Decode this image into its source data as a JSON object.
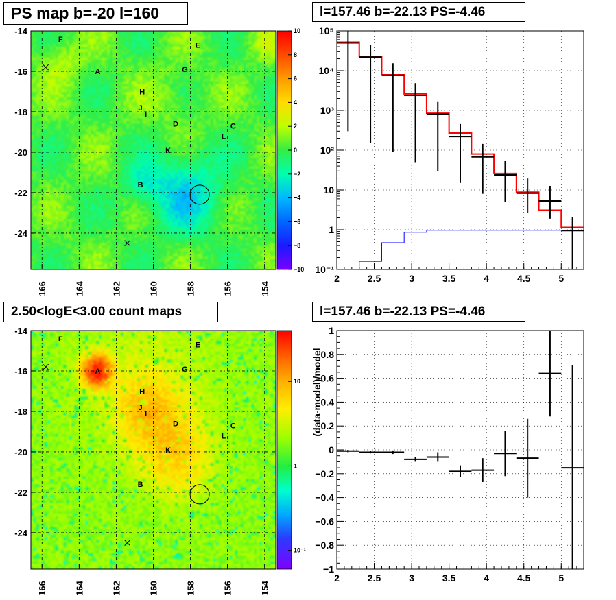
{
  "chart_data": [
    {
      "type": "heatmap",
      "title": "PS map b=-20 l=160",
      "xlabel": "",
      "ylabel": "",
      "x_ticks": [
        166,
        164,
        162,
        160,
        158,
        156,
        154
      ],
      "y_ticks": [
        -14,
        -16,
        -18,
        -20,
        -22,
        -24
      ],
      "xlim": [
        166.6,
        153.4
      ],
      "ylim": [
        -25.8,
        -14
      ],
      "grid": true,
      "colorbar": {
        "scale": "linear",
        "range": [
          -10,
          10
        ],
        "ticks": [
          "10",
          "8",
          "6",
          "4",
          "2",
          "0",
          "−2",
          "−4",
          "−6",
          "−8",
          "−10"
        ]
      },
      "labels": [
        {
          "text": "F",
          "l": 165.0,
          "b": -14.4
        },
        {
          "text": "E",
          "l": 157.6,
          "b": -14.7
        },
        {
          "text": "A",
          "l": 163.0,
          "b": -16.0
        },
        {
          "text": "G",
          "l": 158.3,
          "b": -15.9
        },
        {
          "text": "H",
          "l": 160.6,
          "b": -17.0
        },
        {
          "text": "J",
          "l": 160.7,
          "b": -17.8
        },
        {
          "text": "I",
          "l": 160.4,
          "b": -18.1
        },
        {
          "text": "D",
          "l": 158.8,
          "b": -18.6
        },
        {
          "text": "C",
          "l": 155.7,
          "b": -18.7
        },
        {
          "text": "L",
          "l": 156.2,
          "b": -19.2
        },
        {
          "text": "K",
          "l": 159.2,
          "b": -19.9
        },
        {
          "text": "B",
          "l": 160.7,
          "b": -21.6
        }
      ],
      "markers": [
        {
          "type": "x",
          "l": 165.8,
          "b": -15.8
        },
        {
          "type": "x",
          "l": 161.4,
          "b": -24.5
        },
        {
          "type": "circle",
          "l": 157.5,
          "b": -22.1
        }
      ]
    },
    {
      "type": "line",
      "title": "l=157.46 b=-22.13 PS=-4.46",
      "xlabel": "",
      "ylabel": "",
      "xlim": [
        2,
        5.3
      ],
      "ylim": [
        0.1,
        100000
      ],
      "yscale": "log",
      "x_ticks": [
        "2",
        "2.5",
        "3",
        "3.5",
        "4",
        "4.5",
        "5"
      ],
      "y_ticks": [
        "10⁻¹",
        "1",
        "10",
        "10²",
        "10³",
        "10⁴",
        "10⁵"
      ],
      "grid": true,
      "bin_edges": [
        2.0,
        2.3,
        2.6,
        2.9,
        3.2,
        3.5,
        3.8,
        4.1,
        4.4,
        4.7,
        5.0,
        5.3
      ],
      "series": [
        {
          "kind": "data-points",
          "color": "#000000",
          "x": [
            2.15,
            2.45,
            2.75,
            3.05,
            3.35,
            3.65,
            3.95,
            4.25,
            4.55,
            4.85,
            5.15
          ],
          "y": [
            50000,
            22000,
            7600,
            2400,
            800,
            220,
            68,
            24,
            8.3,
            5.3,
            0.95
          ],
          "yerr_low": [
            49700,
            21850,
            7510,
            2350,
            770,
            205,
            60,
            19,
            5.7,
            3.4,
            0.9
          ],
          "yerr_high": [
            50300,
            22150,
            7690,
            2450,
            830,
            235,
            76,
            29,
            11.2,
            7.4,
            1.1
          ]
        },
        {
          "kind": "step",
          "color": "#ff0000",
          "y": [
            52000,
            23000,
            7900,
            2600,
            850,
            270,
            80,
            26,
            8.8,
            3.1,
            1.15
          ]
        },
        {
          "kind": "step",
          "color": "#0000ff",
          "y": [
            0.1,
            0.16,
            0.47,
            0.86,
            0.97,
            0.97,
            0.97,
            0.97,
            0.97,
            0.97,
            0.97
          ]
        }
      ]
    },
    {
      "type": "heatmap",
      "title": "2.50<logE<3.00 count maps",
      "xlabel": "",
      "ylabel": "",
      "x_ticks": [
        166,
        164,
        162,
        160,
        158,
        156,
        154
      ],
      "y_ticks": [
        -14,
        -16,
        -18,
        -20,
        -22,
        -24
      ],
      "xlim": [
        166.6,
        153.4
      ],
      "ylim": [
        -25.8,
        -14
      ],
      "grid": true,
      "colorbar": {
        "scale": "log",
        "range": [
          0.06,
          40
        ],
        "ticks": [
          "10",
          "1",
          "10⁻¹"
        ]
      },
      "labels": [
        {
          "text": "F",
          "l": 165.0,
          "b": -14.4
        },
        {
          "text": "E",
          "l": 157.6,
          "b": -14.7
        },
        {
          "text": "A",
          "l": 163.0,
          "b": -16.0
        },
        {
          "text": "G",
          "l": 158.3,
          "b": -15.9
        },
        {
          "text": "H",
          "l": 160.6,
          "b": -17.0
        },
        {
          "text": "J",
          "l": 160.7,
          "b": -17.8
        },
        {
          "text": "I",
          "l": 160.4,
          "b": -18.1
        },
        {
          "text": "D",
          "l": 158.8,
          "b": -18.6
        },
        {
          "text": "C",
          "l": 155.7,
          "b": -18.7
        },
        {
          "text": "L",
          "l": 156.2,
          "b": -19.2
        },
        {
          "text": "K",
          "l": 159.2,
          "b": -19.9
        },
        {
          "text": "B",
          "l": 160.7,
          "b": -21.6
        }
      ],
      "markers": [
        {
          "type": "x",
          "l": 165.8,
          "b": -15.8
        },
        {
          "type": "x",
          "l": 161.4,
          "b": -24.5
        },
        {
          "type": "circle",
          "l": 157.5,
          "b": -22.1
        }
      ]
    },
    {
      "type": "scatter",
      "title": "l=157.46 b=-22.13 PS=-4.46",
      "xlabel": "",
      "ylabel": "(data-model)/model",
      "xlim": [
        2,
        5.3
      ],
      "ylim": [
        -1,
        1
      ],
      "x_ticks": [
        "2",
        "2.5",
        "3",
        "3.5",
        "4",
        "4.5",
        "5"
      ],
      "y_ticks": [
        "1",
        "0.8",
        "0.6",
        "0.4",
        "0.2",
        "0",
        "−0.2",
        "−0.4",
        "−0.6",
        "−0.8",
        "−1"
      ],
      "grid": true,
      "series": [
        {
          "color": "#000000",
          "x": [
            2.15,
            2.45,
            2.75,
            3.05,
            3.35,
            3.65,
            3.95,
            4.25,
            4.55,
            4.85,
            5.15
          ],
          "xerr": [
            0.15,
            0.15,
            0.15,
            0.15,
            0.15,
            0.15,
            0.15,
            0.15,
            0.15,
            0.15,
            0.15
          ],
          "y": [
            -0.01,
            -0.02,
            -0.02,
            -0.08,
            -0.06,
            -0.18,
            -0.17,
            -0.03,
            -0.07,
            0.64,
            -0.15
          ],
          "yerr": [
            0.01,
            0.01,
            0.015,
            0.02,
            0.04,
            0.05,
            0.1,
            0.19,
            0.33,
            0.36,
            0.86
          ]
        }
      ]
    }
  ]
}
